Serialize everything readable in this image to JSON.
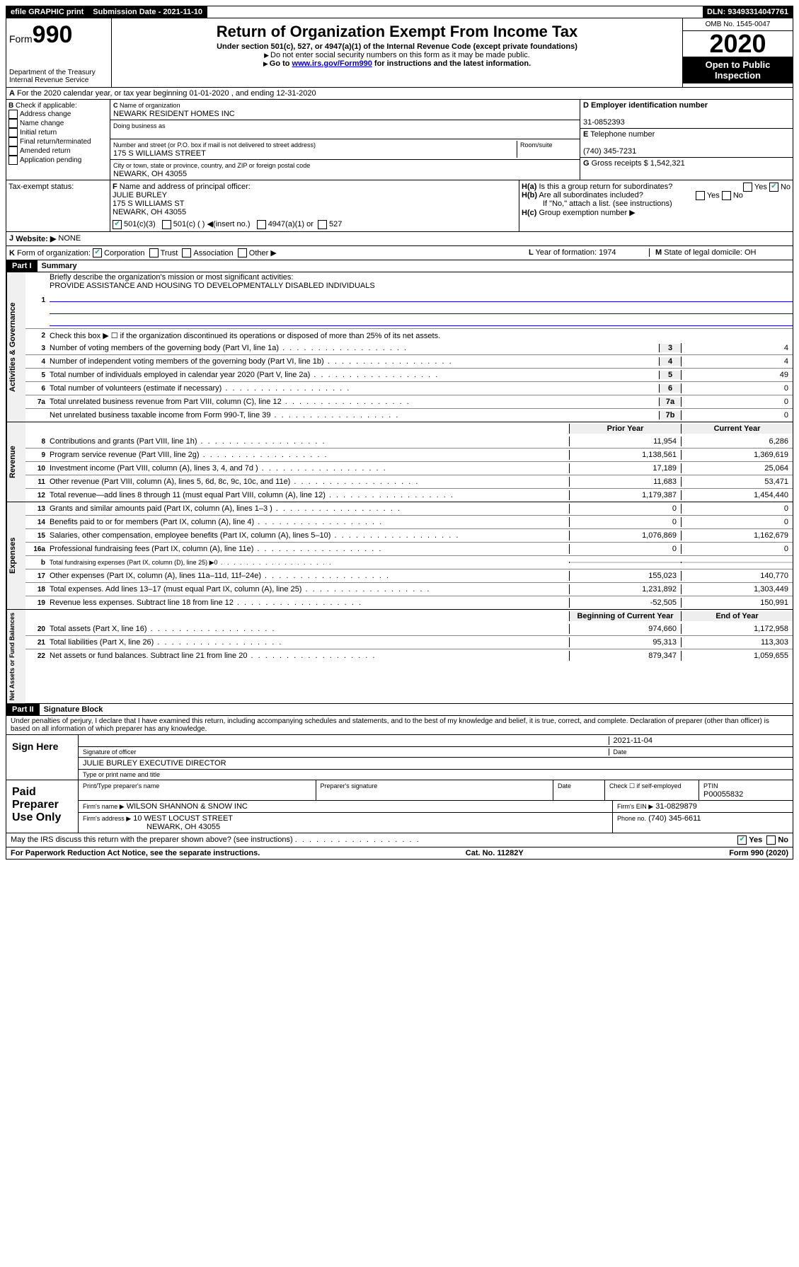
{
  "topbar": {
    "efile": "efile GRAPHIC print",
    "submission_label": "Submission Date - 2021-11-10",
    "dln_label": "DLN: 93493314047761"
  },
  "header": {
    "form_prefix": "Form",
    "form_number": "990",
    "dept": "Department of the Treasury\nInternal Revenue Service",
    "title": "Return of Organization Exempt From Income Tax",
    "subtitle": "Under section 501(c), 527, or 4947(a)(1) of the Internal Revenue Code (except private foundations)",
    "note1": "Do not enter social security numbers on this form as it may be made public.",
    "note2_pre": "Go to ",
    "note2_link": "www.irs.gov/Form990",
    "note2_post": " for instructions and the latest information.",
    "omb": "OMB No. 1545-0047",
    "year": "2020",
    "open": "Open to Public Inspection"
  },
  "section_a": "For the 2020 calendar year, or tax year beginning 01-01-2020   , and ending 12-31-2020",
  "box_b": {
    "label": "Check if applicable:",
    "items": [
      "Address change",
      "Name change",
      "Initial return",
      "Final return/terminated",
      "Amended return",
      "Application pending"
    ]
  },
  "box_c": {
    "name_label": "Name of organization",
    "name": "NEWARK RESIDENT HOMES INC",
    "dba_label": "Doing business as",
    "addr_label": "Number and street (or P.O. box if mail is not delivered to street address)",
    "room_label": "Room/suite",
    "addr": "175 S WILLIAMS STREET",
    "city_label": "City or town, state or province, country, and ZIP or foreign postal code",
    "city": "NEWARK, OH  43055"
  },
  "box_d": {
    "label": "Employer identification number",
    "value": "31-0852393"
  },
  "box_e": {
    "label": "Telephone number",
    "value": "(740) 345-7231"
  },
  "box_f": {
    "label": "Name and address of principal officer:",
    "name": "JULIE BURLEY",
    "addr1": "175 S WILLIAMS ST",
    "addr2": "NEWARK, OH  43055"
  },
  "box_g": {
    "label": "Gross receipts $",
    "value": "1,542,321"
  },
  "box_h": {
    "a_label": "Is this a group return for subordinates?",
    "b_label": "Are all subordinates included?",
    "b_note": "If \"No,\" attach a list. (see instructions)",
    "c_label": "Group exemption number ▶"
  },
  "row_i": {
    "label": "Tax-exempt status:",
    "opt1": "501(c)(3)",
    "opt2": "501(c) (  ) ◀(insert no.)",
    "opt3": "4947(a)(1) or",
    "opt4": "527"
  },
  "row_j": {
    "label": "Website: ▶",
    "value": "NONE"
  },
  "row_k": {
    "label": "Form of organization:",
    "opts": [
      "Corporation",
      "Trust",
      "Association",
      "Other ▶"
    ],
    "l_label": "Year of formation:",
    "l_value": "1974",
    "m_label": "State of legal domicile:",
    "m_value": "OH"
  },
  "part1": {
    "label": "Part I",
    "title": "Summary",
    "line1_label": "Briefly describe the organization's mission or most significant activities:",
    "line1_text": "PROVIDE ASSISTANCE AND HOUSING TO DEVELOPMENTALLY DISABLED INDIVIDUALS",
    "line2": "Check this box ▶ ☐  if the organization discontinued its operations or disposed of more than 25% of its net assets.",
    "governance_lines": [
      {
        "n": "3",
        "d": "Number of voting members of the governing body (Part VI, line 1a)",
        "k": "3",
        "v": "4"
      },
      {
        "n": "4",
        "d": "Number of independent voting members of the governing body (Part VI, line 1b)",
        "k": "4",
        "v": "4"
      },
      {
        "n": "5",
        "d": "Total number of individuals employed in calendar year 2020 (Part V, line 2a)",
        "k": "5",
        "v": "49"
      },
      {
        "n": "6",
        "d": "Total number of volunteers (estimate if necessary)",
        "k": "6",
        "v": "0"
      },
      {
        "n": "7a",
        "d": "Total unrelated business revenue from Part VIII, column (C), line 12",
        "k": "7a",
        "v": "0"
      },
      {
        "n": "",
        "d": "Net unrelated business taxable income from Form 990-T, line 39",
        "k": "7b",
        "v": "0"
      }
    ],
    "col_prior": "Prior Year",
    "col_current": "Current Year",
    "revenue_lines": [
      {
        "n": "8",
        "d": "Contributions and grants (Part VIII, line 1h)",
        "p": "11,954",
        "c": "6,286"
      },
      {
        "n": "9",
        "d": "Program service revenue (Part VIII, line 2g)",
        "p": "1,138,561",
        "c": "1,369,619"
      },
      {
        "n": "10",
        "d": "Investment income (Part VIII, column (A), lines 3, 4, and 7d )",
        "p": "17,189",
        "c": "25,064"
      },
      {
        "n": "11",
        "d": "Other revenue (Part VIII, column (A), lines 5, 6d, 8c, 9c, 10c, and 11e)",
        "p": "11,683",
        "c": "53,471"
      },
      {
        "n": "12",
        "d": "Total revenue—add lines 8 through 11 (must equal Part VIII, column (A), line 12)",
        "p": "1,179,387",
        "c": "1,454,440"
      }
    ],
    "expense_lines": [
      {
        "n": "13",
        "d": "Grants and similar amounts paid (Part IX, column (A), lines 1–3 )",
        "p": "0",
        "c": "0"
      },
      {
        "n": "14",
        "d": "Benefits paid to or for members (Part IX, column (A), line 4)",
        "p": "0",
        "c": "0"
      },
      {
        "n": "15",
        "d": "Salaries, other compensation, employee benefits (Part IX, column (A), lines 5–10)",
        "p": "1,076,869",
        "c": "1,162,679"
      },
      {
        "n": "16a",
        "d": "Professional fundraising fees (Part IX, column (A), line 11e)",
        "p": "0",
        "c": "0"
      },
      {
        "n": "b",
        "d": "Total fundraising expenses (Part IX, column (D), line 25) ▶0",
        "p": "",
        "c": "",
        "shaded": true
      },
      {
        "n": "17",
        "d": "Other expenses (Part IX, column (A), lines 11a–11d, 11f–24e)",
        "p": "155,023",
        "c": "140,770"
      },
      {
        "n": "18",
        "d": "Total expenses. Add lines 13–17 (must equal Part IX, column (A), line 25)",
        "p": "1,231,892",
        "c": "1,303,449"
      },
      {
        "n": "19",
        "d": "Revenue less expenses. Subtract line 18 from line 12",
        "p": "-52,505",
        "c": "150,991"
      }
    ],
    "col_begin": "Beginning of Current Year",
    "col_end": "End of Year",
    "net_lines": [
      {
        "n": "20",
        "d": "Total assets (Part X, line 16)",
        "p": "974,660",
        "c": "1,172,958"
      },
      {
        "n": "21",
        "d": "Total liabilities (Part X, line 26)",
        "p": "95,313",
        "c": "113,303"
      },
      {
        "n": "22",
        "d": "Net assets or fund balances. Subtract line 21 from line 20",
        "p": "879,347",
        "c": "1,059,655"
      }
    ]
  },
  "sections": {
    "gov": "Activities & Governance",
    "rev": "Revenue",
    "exp": "Expenses",
    "net": "Net Assets or Fund Balances"
  },
  "part2": {
    "label": "Part II",
    "title": "Signature Block",
    "penalty": "Under penalties of perjury, I declare that I have examined this return, including accompanying schedules and statements, and to the best of my knowledge and belief, it is true, correct, and complete. Declaration of preparer (other than officer) is based on all information of which preparer has any knowledge.",
    "sign_here": "Sign Here",
    "sig_date": "2021-11-04",
    "sig_officer_label": "Signature of officer",
    "date_label": "Date",
    "officer_name": "JULIE BURLEY  EXECUTIVE DIRECTOR",
    "officer_name_label": "Type or print name and title",
    "paid": "Paid Preparer Use Only",
    "prep_name_label": "Print/Type preparer's name",
    "prep_sig_label": "Preparer's signature",
    "prep_date_label": "Date",
    "check_self": "Check ☐ if self-employed",
    "ptin_label": "PTIN",
    "ptin": "P00055832",
    "firm_name_label": "Firm's name    ▶",
    "firm_name": "WILSON SHANNON & SNOW INC",
    "firm_ein_label": "Firm's EIN ▶",
    "firm_ein": "31-0829879",
    "firm_addr_label": "Firm's address ▶",
    "firm_addr": "10 WEST LOCUST STREET",
    "firm_city": "NEWARK, OH  43055",
    "phone_label": "Phone no.",
    "phone": "(740) 345-6611",
    "discuss": "May the IRS discuss this return with the preparer shown above? (see instructions)",
    "yes": "Yes",
    "no": "No"
  },
  "footer": {
    "left": "For Paperwork Reduction Act Notice, see the separate instructions.",
    "mid": "Cat. No. 11282Y",
    "right": "Form 990 (2020)"
  }
}
